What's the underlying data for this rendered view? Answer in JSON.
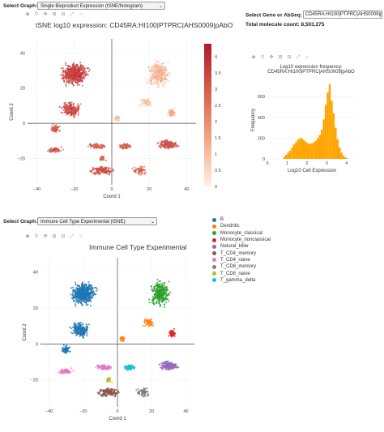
{
  "top_graph_select": {
    "label": "Select Graph:",
    "value": "Single Bioproduct Expression (tSNE/histogram)"
  },
  "gene_select": {
    "label": "Select Gene or AbSeq:",
    "value": "CD45RA:HI100|PTPRC|AHS0009|p",
    "total_count": "Total molecule count: 8,503,275"
  },
  "tsne_plot": {
    "title": "tSNE log10 expression: CD45RA:HI100|PTPRC|AHS0009|pAbO",
    "xlabel": "Coord 1",
    "ylabel": "Coord 2",
    "x_ticks": [
      "−40",
      "−20",
      "0",
      "20",
      "40"
    ],
    "y_ticks": [
      "40",
      "20",
      "0",
      "−20"
    ],
    "colorbar_ticks": [
      "4",
      "3.5",
      "3",
      "2.5",
      "2",
      "1.5",
      "1",
      "0.5",
      "0"
    ],
    "colorscale": [
      "#fdf2e9",
      "#f4a582",
      "#d6604d",
      "#b2182b"
    ]
  },
  "histogram": {
    "title_line1": "Log10 expression frequency:",
    "title_line2": "CD45RA:HI100|PTPRC|AHS0009|pAbO",
    "xlabel": "Log10 Cell Expression",
    "ylabel": "Frequency",
    "x_ticks": [
      "0",
      "1",
      "2",
      "3",
      "4"
    ],
    "y_ticks": [
      "600",
      "400",
      "200",
      "0"
    ],
    "bar_color": "#ffa500"
  },
  "bottom_graph_select": {
    "label": "Select Graph:",
    "value": "Immune Cell Type Experimental (tSNE)"
  },
  "cell_type_plot": {
    "title": "Immune Cell Type Experimental",
    "xlabel": "Coord 1",
    "ylabel": "Coord 2",
    "x_ticks": [
      "−40",
      "−20",
      "0",
      "20",
      "40"
    ],
    "y_ticks": [
      "40",
      "20",
      "0",
      "−20"
    ],
    "legend": [
      {
        "name": "B",
        "color": "#1f77b4"
      },
      {
        "name": "Dendritic",
        "color": "#ff7f0e"
      },
      {
        "name": "Monocyte_classical",
        "color": "#2ca02c"
      },
      {
        "name": "Monocyte_nonclassical",
        "color": "#d62728"
      },
      {
        "name": "Natural_killer",
        "color": "#9467bd"
      },
      {
        "name": "T_CD4_memory",
        "color": "#8c564b"
      },
      {
        "name": "T_CD4_naive",
        "color": "#e377c2"
      },
      {
        "name": "T_CD8_memory",
        "color": "#7f7f7f"
      },
      {
        "name": "T_CD8_naive",
        "color": "#bcbd22"
      },
      {
        "name": "T_gamma_delta",
        "color": "#17becf"
      }
    ]
  },
  "chart_data": [
    {
      "type": "scatter",
      "title": "tSNE log10 expression: CD45RA:HI100|PTPRC|AHS0009|pAbO",
      "xlabel": "Coord 1",
      "ylabel": "Coord 2",
      "xlim": [
        -45,
        45
      ],
      "ylim": [
        -35,
        48
      ],
      "color_range": [
        0,
        4.4
      ]
    },
    {
      "type": "bar",
      "title": "Log10 expression frequency: CD45RA:HI100|PTPRC|AHS0009|pAbO",
      "xlabel": "Log10 Cell Expression",
      "ylabel": "Frequency",
      "x": [
        0.85,
        0.95,
        1.05,
        1.15,
        1.25,
        1.35,
        1.45,
        1.55,
        1.65,
        1.75,
        1.85,
        1.95,
        2.05,
        2.15,
        2.25,
        2.35,
        2.45,
        2.55,
        2.65,
        2.75,
        2.85,
        2.95,
        3.05,
        3.15,
        3.25,
        3.35,
        3.45,
        3.55,
        3.65,
        3.75,
        3.85,
        3.95,
        4.05
      ],
      "values": [
        20,
        40,
        60,
        80,
        110,
        140,
        160,
        185,
        200,
        195,
        180,
        165,
        150,
        145,
        150,
        160,
        175,
        200,
        230,
        280,
        380,
        520,
        640,
        720,
        560,
        440,
        300,
        190,
        110,
        60,
        30,
        15,
        5
      ],
      "xlim": [
        0,
        4.5
      ],
      "ylim": [
        0,
        750
      ]
    },
    {
      "type": "scatter",
      "title": "Immune Cell Type Experimental",
      "xlabel": "Coord 1",
      "ylabel": "Coord 2",
      "xlim": [
        -45,
        45
      ],
      "ylim": [
        -35,
        48
      ],
      "series": [
        {
          "name": "B"
        },
        {
          "name": "Dendritic"
        },
        {
          "name": "Monocyte_classical"
        },
        {
          "name": "Monocyte_nonclassical"
        },
        {
          "name": "Natural_killer"
        },
        {
          "name": "T_CD4_memory"
        },
        {
          "name": "T_CD4_naive"
        },
        {
          "name": "T_CD8_memory"
        },
        {
          "name": "T_CD8_naive"
        },
        {
          "name": "T_gamma_delta"
        }
      ]
    }
  ]
}
